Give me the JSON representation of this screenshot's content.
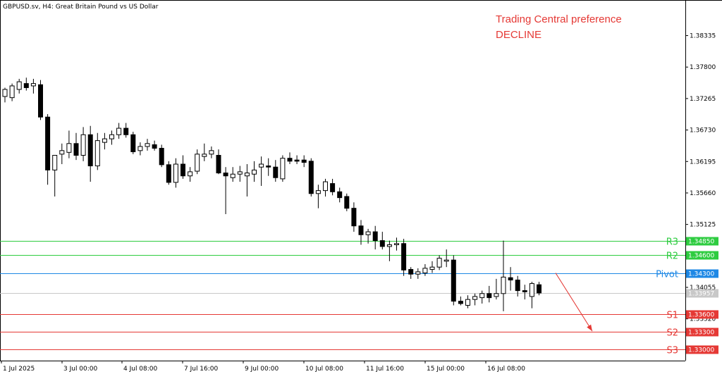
{
  "header": {
    "title": "GBPUSD.sv, H4:  Great Britain Pound vs US Dollar"
  },
  "preference": {
    "line1": "Trading Central preference",
    "line2": "DECLINE",
    "color": "#e53935"
  },
  "chart_data": {
    "type": "candlestick",
    "symbol": "GBPUSD.sv",
    "timeframe": "H4",
    "ylim": [
      1.3281,
      1.3894
    ],
    "y_ticks": [
      "1.38335",
      "1.37800",
      "1.37265",
      "1.36730",
      "1.36195",
      "1.35660",
      "1.35125",
      "1.34590",
      "1.34055",
      "1.33520"
    ],
    "x_ticks": [
      "1 Jul 2025",
      "3 Jul 00:00",
      "4 Jul 08:00",
      "7 Jul 16:00",
      "9 Jul 00:00",
      "10 Jul 08:00",
      "11 Jul 16:00",
      "15 Jul 00:00",
      "16 Jul 08:00"
    ],
    "current_price": "1.33957",
    "levels": [
      {
        "name": "R3",
        "value": 1.3485,
        "label": "1.34850",
        "color": "#2ecc40"
      },
      {
        "name": "R2",
        "value": 1.346,
        "label": "1.34600",
        "color": "#2ecc40"
      },
      {
        "name": "Pivot",
        "value": 1.343,
        "label": "1.34300",
        "color": "#1e88e5"
      },
      {
        "name": "S1",
        "value": 1.336,
        "label": "1.33600",
        "color": "#e53935"
      },
      {
        "name": "S2",
        "value": 1.333,
        "label": "1.33300",
        "color": "#e53935"
      },
      {
        "name": "S3",
        "value": 1.33,
        "label": "1.33000",
        "color": "#e53935"
      }
    ],
    "arrow": {
      "from": 1.343,
      "to": 1.3355,
      "direction": "down"
    },
    "candles": [
      [
        1.373,
        1.3745,
        1.372,
        1.3742
      ],
      [
        1.3728,
        1.3752,
        1.3722,
        1.3748
      ],
      [
        1.3742,
        1.376,
        1.3735,
        1.3755
      ],
      [
        1.3752,
        1.3762,
        1.374,
        1.3745
      ],
      [
        1.3748,
        1.376,
        1.3735,
        1.3752
      ],
      [
        1.375,
        1.3758,
        1.369,
        1.3695
      ],
      [
        1.3695,
        1.37,
        1.358,
        1.3605
      ],
      [
        1.3605,
        1.363,
        1.356,
        1.363
      ],
      [
        1.3632,
        1.365,
        1.3615,
        1.3638
      ],
      [
        1.3635,
        1.3672,
        1.3625,
        1.365
      ],
      [
        1.365,
        1.3668,
        1.3622,
        1.363
      ],
      [
        1.363,
        1.3678,
        1.362,
        1.3665
      ],
      [
        1.3665,
        1.368,
        1.3585,
        1.3612
      ],
      [
        1.3612,
        1.3668,
        1.3605,
        1.3655
      ],
      [
        1.3652,
        1.3668,
        1.364,
        1.3658
      ],
      [
        1.3658,
        1.3672,
        1.3648,
        1.3665
      ],
      [
        1.3665,
        1.3685,
        1.3658,
        1.3676
      ],
      [
        1.3676,
        1.3685,
        1.366,
        1.3665
      ],
      [
        1.3665,
        1.367,
        1.3632,
        1.3636
      ],
      [
        1.3638,
        1.3652,
        1.363,
        1.3645
      ],
      [
        1.3645,
        1.3658,
        1.3638,
        1.365
      ],
      [
        1.3648,
        1.3655,
        1.3638,
        1.3642
      ],
      [
        1.3642,
        1.3648,
        1.361,
        1.3614
      ],
      [
        1.3614,
        1.362,
        1.358,
        1.3584
      ],
      [
        1.3584,
        1.3625,
        1.3575,
        1.3615
      ],
      [
        1.3615,
        1.363,
        1.359,
        1.3595
      ],
      [
        1.3595,
        1.361,
        1.3585,
        1.3602
      ],
      [
        1.3603,
        1.364,
        1.3598,
        1.3632
      ],
      [
        1.3628,
        1.365,
        1.362,
        1.3632
      ],
      [
        1.3632,
        1.3645,
        1.3625,
        1.3638
      ],
      [
        1.363,
        1.364,
        1.3598,
        1.36
      ],
      [
        1.36,
        1.361,
        1.353,
        1.3595
      ],
      [
        1.3592,
        1.361,
        1.3585,
        1.3598
      ],
      [
        1.3598,
        1.3612,
        1.3585,
        1.3602
      ],
      [
        1.3595,
        1.3615,
        1.356,
        1.36
      ],
      [
        1.3598,
        1.362,
        1.3585,
        1.3605
      ],
      [
        1.361,
        1.3628,
        1.3578,
        1.3615
      ],
      [
        1.3612,
        1.3625,
        1.3595,
        1.361
      ],
      [
        1.361,
        1.3622,
        1.3585,
        1.3592
      ],
      [
        1.359,
        1.363,
        1.3585,
        1.3625
      ],
      [
        1.3625,
        1.3635,
        1.3615,
        1.362
      ],
      [
        1.3622,
        1.363,
        1.3615,
        1.362
      ],
      [
        1.3622,
        1.363,
        1.361,
        1.3618
      ],
      [
        1.362,
        1.3625,
        1.356,
        1.3565
      ],
      [
        1.3565,
        1.358,
        1.354,
        1.357
      ],
      [
        1.357,
        1.359,
        1.356,
        1.3585
      ],
      [
        1.3582,
        1.359,
        1.3562,
        1.3568
      ],
      [
        1.3568,
        1.3575,
        1.355,
        1.3558
      ],
      [
        1.356,
        1.3565,
        1.3535,
        1.354
      ],
      [
        1.354,
        1.355,
        1.35,
        1.351
      ],
      [
        1.351,
        1.352,
        1.3478,
        1.3495
      ],
      [
        1.3495,
        1.3505,
        1.348,
        1.35
      ],
      [
        1.35,
        1.351,
        1.347,
        1.3485
      ],
      [
        1.3485,
        1.35,
        1.347,
        1.3475
      ],
      [
        1.3475,
        1.3485,
        1.345,
        1.3478
      ],
      [
        1.3478,
        1.349,
        1.3468,
        1.348
      ],
      [
        1.348,
        1.3488,
        1.3425,
        1.3435
      ],
      [
        1.3436,
        1.344,
        1.342,
        1.3428
      ],
      [
        1.3428,
        1.3438,
        1.342,
        1.3432
      ],
      [
        1.343,
        1.3445,
        1.3425,
        1.3438
      ],
      [
        1.3436,
        1.345,
        1.343,
        1.344
      ],
      [
        1.344,
        1.346,
        1.3435,
        1.3455
      ],
      [
        1.345,
        1.347,
        1.344,
        1.3452
      ],
      [
        1.3452,
        1.346,
        1.3375,
        1.3382
      ],
      [
        1.3382,
        1.339,
        1.3375,
        1.3378
      ],
      [
        1.3375,
        1.3392,
        1.337,
        1.3385
      ],
      [
        1.3385,
        1.3395,
        1.3375,
        1.339
      ],
      [
        1.3388,
        1.34,
        1.3378,
        1.3395
      ],
      [
        1.3395,
        1.3408,
        1.338,
        1.3388
      ],
      [
        1.339,
        1.342,
        1.3385,
        1.3395
      ],
      [
        1.3395,
        1.3485,
        1.3365,
        1.3423
      ],
      [
        1.3422,
        1.344,
        1.34,
        1.3418
      ],
      [
        1.3418,
        1.3425,
        1.339,
        1.34
      ],
      [
        1.34,
        1.341,
        1.3385,
        1.3398
      ],
      [
        1.339,
        1.3415,
        1.337,
        1.3412
      ],
      [
        1.341,
        1.3415,
        1.3392,
        1.3396
      ]
    ]
  }
}
